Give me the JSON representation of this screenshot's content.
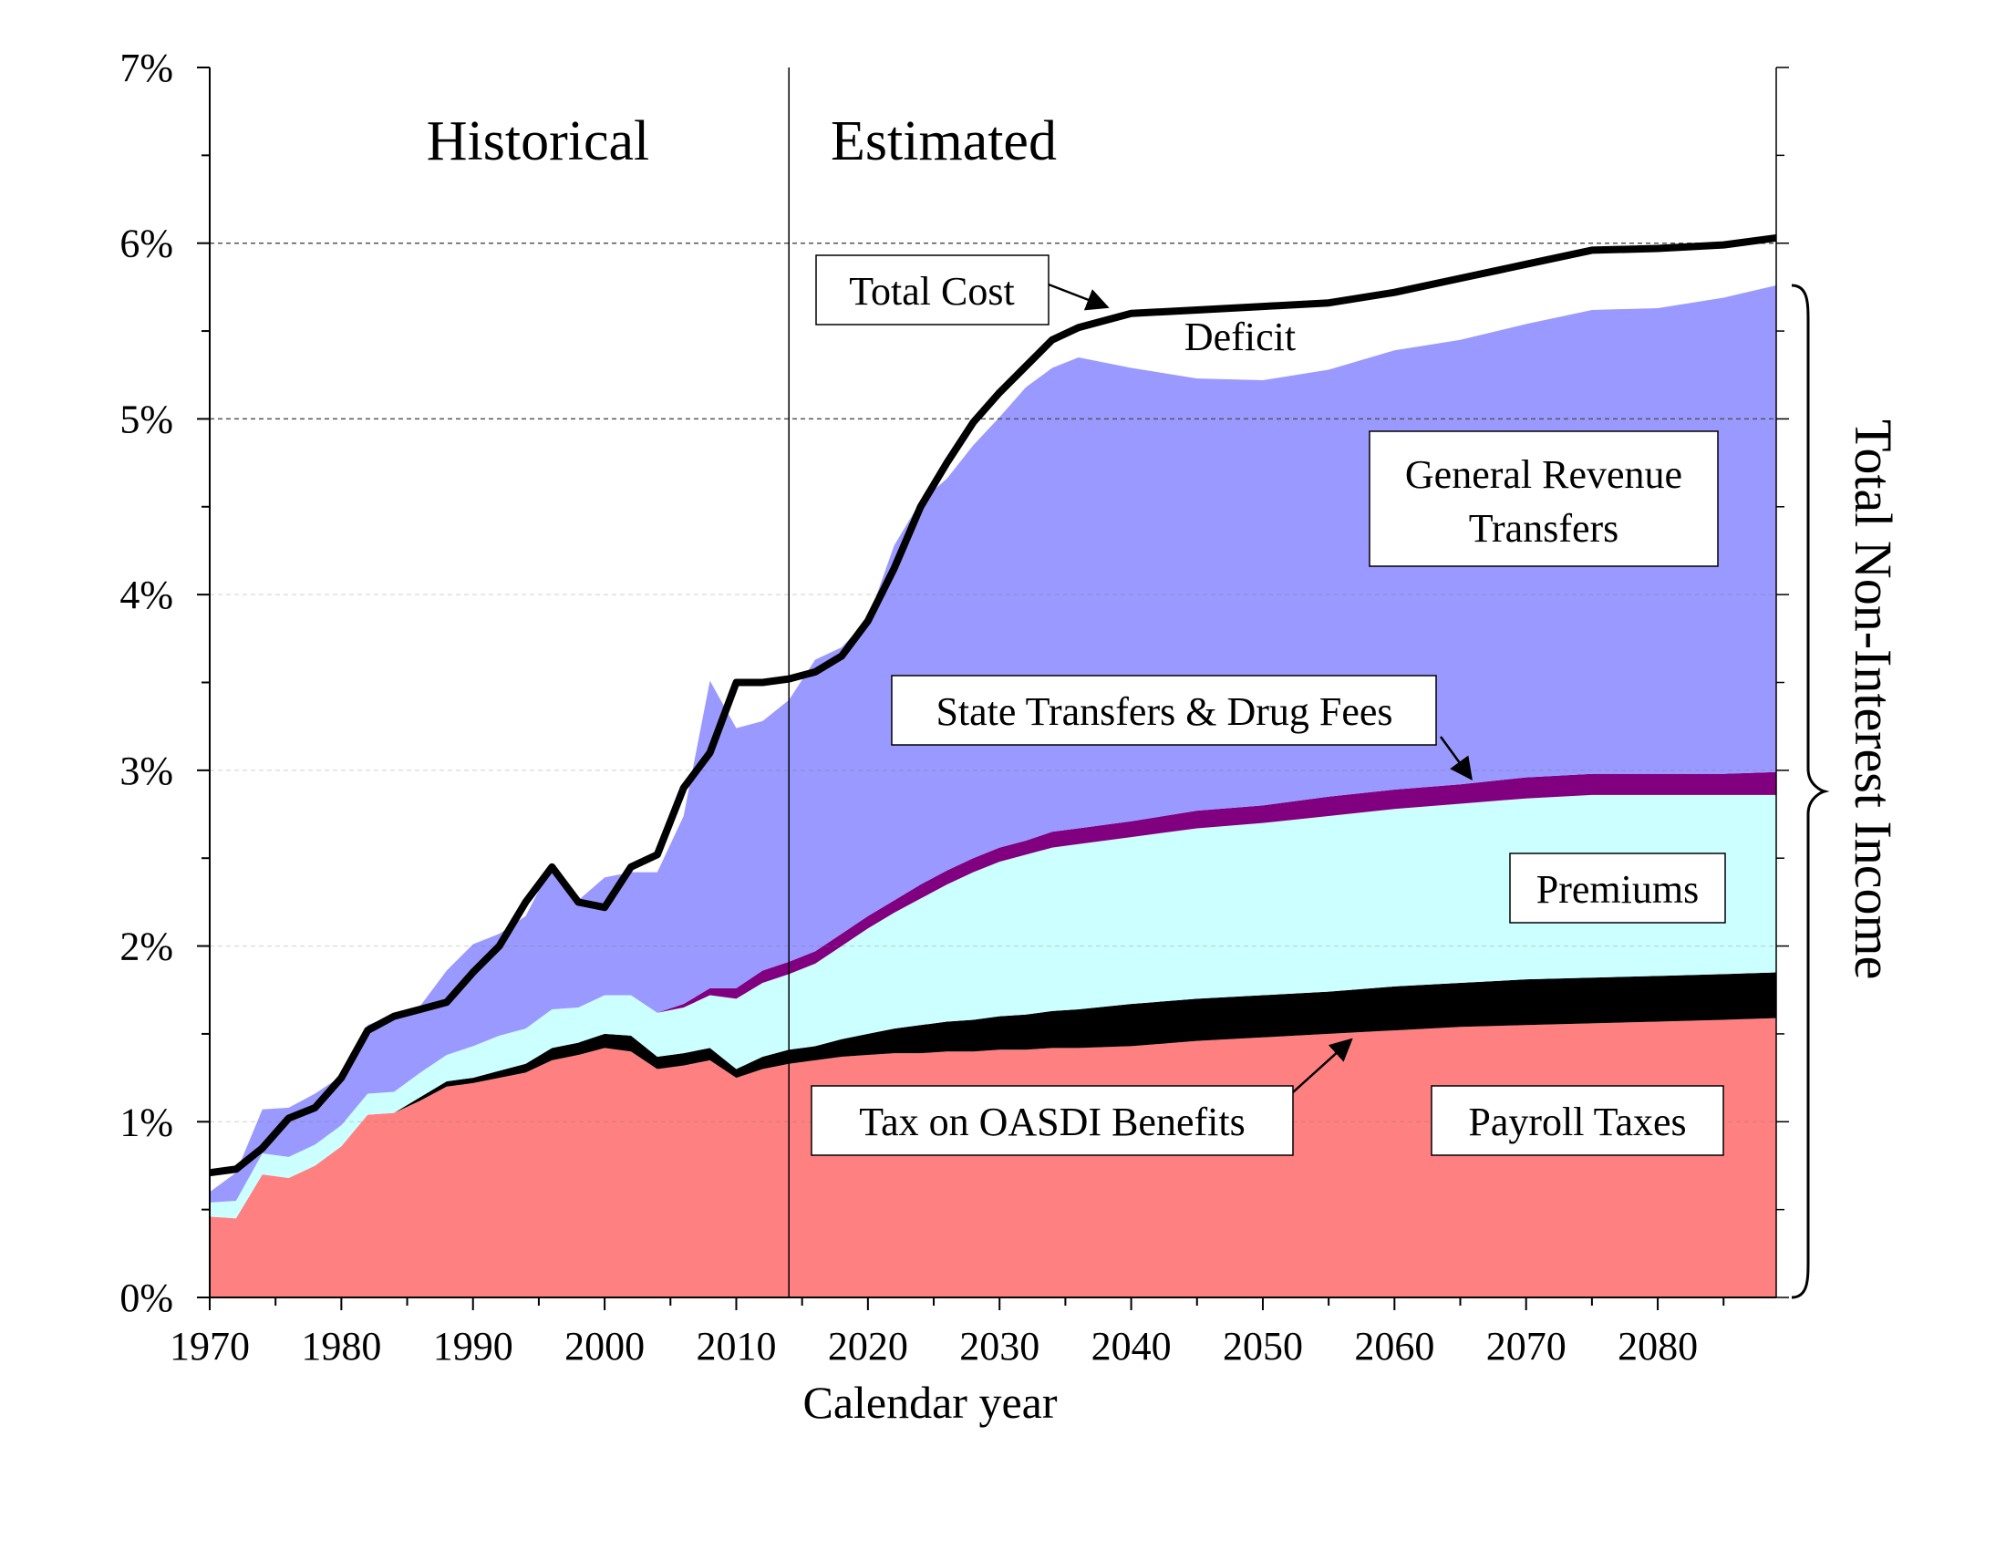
{
  "chart_data": {
    "type": "area",
    "stacked": true,
    "xlabel": "Calendar year",
    "ylabel": "",
    "xlim": [
      1970,
      2089
    ],
    "ylim": [
      0,
      7
    ],
    "grid": "horizontal dashed at 6% and 5%",
    "x_ticks": [
      "1970",
      "1980",
      "1990",
      "2000",
      "2010",
      "2020",
      "2030",
      "2040",
      "2050",
      "2060",
      "2070",
      "2080"
    ],
    "y_ticks": [
      "0%",
      "1%",
      "2%",
      "3%",
      "4%",
      "5%",
      "6%",
      "7%"
    ],
    "regions": [
      {
        "label": "Historical",
        "from": 1970,
        "to": 2014
      },
      {
        "label": "Estimated",
        "from": 2014,
        "to": 2089
      }
    ],
    "divider_year": 2014,
    "x": [
      1970,
      1972,
      1974,
      1976,
      1978,
      1980,
      1982,
      1984,
      1986,
      1988,
      1990,
      1992,
      1994,
      1996,
      1998,
      2000,
      2002,
      2004,
      2006,
      2008,
      2010,
      2012,
      2014,
      2016,
      2018,
      2020,
      2022,
      2024,
      2026,
      2028,
      2030,
      2032,
      2034,
      2036,
      2040,
      2045,
      2050,
      2055,
      2060,
      2065,
      2070,
      2075,
      2080,
      2085,
      2089
    ],
    "series": [
      {
        "name": "Payroll Taxes",
        "color": "#ff8080",
        "values": [
          0.46,
          0.45,
          0.7,
          0.68,
          0.75,
          0.86,
          1.04,
          1.05,
          1.12,
          1.2,
          1.22,
          1.25,
          1.28,
          1.35,
          1.38,
          1.42,
          1.4,
          1.3,
          1.32,
          1.35,
          1.25,
          1.3,
          1.33,
          1.35,
          1.37,
          1.38,
          1.39,
          1.39,
          1.4,
          1.4,
          1.41,
          1.41,
          1.42,
          1.42,
          1.43,
          1.46,
          1.48,
          1.5,
          1.52,
          1.54,
          1.55,
          1.56,
          1.57,
          1.58,
          1.59
        ]
      },
      {
        "name": "Tax on OASDI Benefits",
        "color": "#000000",
        "values": [
          0.0,
          0.0,
          0.0,
          0.0,
          0.0,
          0.0,
          0.0,
          0.0,
          0.02,
          0.03,
          0.03,
          0.04,
          0.05,
          0.07,
          0.07,
          0.08,
          0.09,
          0.07,
          0.07,
          0.07,
          0.05,
          0.07,
          0.08,
          0.08,
          0.1,
          0.12,
          0.14,
          0.16,
          0.17,
          0.18,
          0.19,
          0.2,
          0.21,
          0.22,
          0.24,
          0.24,
          0.24,
          0.24,
          0.25,
          0.25,
          0.26,
          0.26,
          0.26,
          0.26,
          0.26
        ]
      },
      {
        "name": "Premiums",
        "color": "#ccffff",
        "values": [
          0.08,
          0.1,
          0.12,
          0.12,
          0.12,
          0.12,
          0.12,
          0.12,
          0.14,
          0.15,
          0.18,
          0.2,
          0.2,
          0.22,
          0.2,
          0.22,
          0.23,
          0.25,
          0.26,
          0.3,
          0.4,
          0.42,
          0.43,
          0.47,
          0.53,
          0.6,
          0.66,
          0.72,
          0.78,
          0.84,
          0.88,
          0.91,
          0.93,
          0.94,
          0.95,
          0.97,
          0.98,
          1.0,
          1.01,
          1.02,
          1.03,
          1.04,
          1.03,
          1.02,
          1.01
        ]
      },
      {
        "name": "State Transfers & Drug Fees",
        "color": "#800080",
        "values": [
          0.0,
          0.0,
          0.0,
          0.0,
          0.0,
          0.0,
          0.0,
          0.0,
          0.0,
          0.0,
          0.0,
          0.0,
          0.0,
          0.0,
          0.0,
          0.0,
          0.0,
          0.0,
          0.02,
          0.04,
          0.06,
          0.07,
          0.07,
          0.07,
          0.07,
          0.07,
          0.07,
          0.08,
          0.08,
          0.08,
          0.08,
          0.08,
          0.09,
          0.09,
          0.09,
          0.1,
          0.1,
          0.11,
          0.11,
          0.11,
          0.12,
          0.12,
          0.12,
          0.12,
          0.13
        ]
      },
      {
        "name": "General Revenue Transfers",
        "color": "#9999ff",
        "values": [
          0.06,
          0.16,
          0.25,
          0.28,
          0.29,
          0.28,
          0.39,
          0.44,
          0.38,
          0.48,
          0.58,
          0.58,
          0.64,
          0.82,
          0.61,
          0.67,
          0.7,
          0.8,
          1.07,
          1.75,
          1.48,
          1.42,
          1.49,
          1.66,
          1.63,
          1.69,
          2.02,
          2.18,
          2.23,
          2.35,
          2.45,
          2.58,
          2.64,
          2.68,
          2.58,
          2.46,
          2.42,
          2.43,
          2.5,
          2.53,
          2.58,
          2.64,
          2.65,
          2.71,
          2.77
        ]
      }
    ],
    "total_cost": {
      "name": "Total Cost",
      "color": "#000000",
      "values": [
        0.71,
        0.73,
        0.85,
        1.02,
        1.08,
        1.25,
        1.52,
        1.6,
        1.64,
        1.68,
        1.85,
        2.0,
        2.25,
        2.45,
        2.25,
        2.22,
        2.45,
        2.52,
        2.9,
        3.1,
        3.5,
        3.5,
        3.52,
        3.56,
        3.65,
        3.85,
        4.15,
        4.5,
        4.75,
        4.98,
        5.15,
        5.3,
        5.45,
        5.52,
        5.6,
        5.62,
        5.64,
        5.66,
        5.72,
        5.8,
        5.88,
        5.96,
        5.97,
        5.99,
        6.03
      ]
    },
    "annotations": {
      "total_cost": "Total Cost",
      "deficit": "Deficit",
      "general_revenue_line1": "General Revenue",
      "general_revenue_line2": "Transfers",
      "state_transfers": "State Transfers & Drug Fees",
      "premiums": "Premiums",
      "tax_oasdi": "Tax on OASDI Benefits",
      "payroll_taxes": "Payroll Taxes",
      "brace_label": "Total Non-Interest Income"
    }
  }
}
